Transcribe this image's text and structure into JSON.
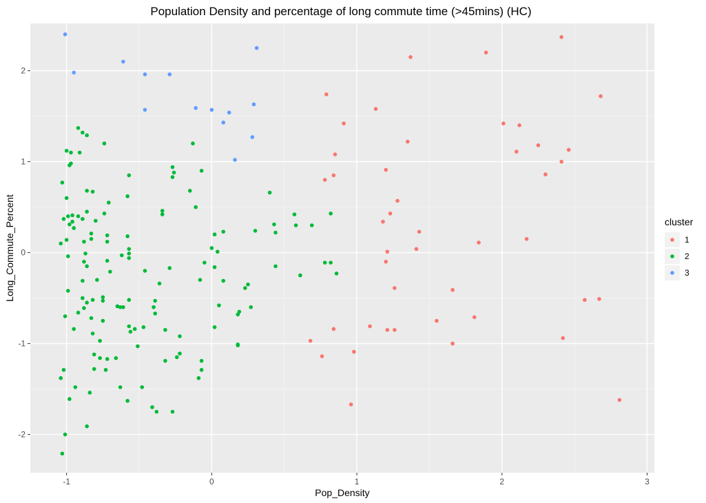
{
  "chart_data": {
    "type": "scatter",
    "title": "Population Density and percentage of long commute time (>45mins) (HC)",
    "xlabel": "Pop_Density",
    "ylabel": "Long_Commute_Percent",
    "xlim": [
      -1.25,
      3.05
    ],
    "ylim": [
      -2.42,
      2.52
    ],
    "x_ticks": [
      -1,
      0,
      1,
      2,
      3
    ],
    "y_ticks": [
      -2,
      -1,
      0,
      1,
      2
    ],
    "x_tick_labels": [
      "-1",
      "0",
      "1",
      "2",
      "3"
    ],
    "y_tick_labels": [
      "-2",
      "-1",
      "0",
      "1",
      "2"
    ],
    "grid": true,
    "legend": {
      "title": "cluster",
      "position": "right"
    },
    "series": [
      {
        "name": "1",
        "color": "#F8766D",
        "points": [
          [
            0.79,
            1.74
          ],
          [
            1.13,
            1.58
          ],
          [
            1.37,
            2.15
          ],
          [
            1.89,
            2.2
          ],
          [
            2.41,
            2.37
          ],
          [
            2.68,
            1.72
          ],
          [
            0.91,
            1.42
          ],
          [
            1.35,
            1.22
          ],
          [
            2.01,
            1.42
          ],
          [
            2.12,
            1.4
          ],
          [
            2.25,
            1.18
          ],
          [
            2.1,
            1.11
          ],
          [
            2.46,
            1.13
          ],
          [
            2.41,
            1.0
          ],
          [
            2.3,
            0.86
          ],
          [
            0.85,
            1.08
          ],
          [
            1.2,
            0.91
          ],
          [
            0.78,
            0.8
          ],
          [
            0.84,
            0.85
          ],
          [
            1.28,
            0.57
          ],
          [
            1.23,
            0.43
          ],
          [
            1.18,
            0.34
          ],
          [
            1.43,
            0.23
          ],
          [
            1.84,
            0.11
          ],
          [
            2.17,
            0.15
          ],
          [
            1.41,
            0.04
          ],
          [
            1.21,
            0.01
          ],
          [
            1.2,
            -0.1
          ],
          [
            1.26,
            -0.39
          ],
          [
            1.66,
            -0.41
          ],
          [
            2.57,
            -0.52
          ],
          [
            2.67,
            -0.51
          ],
          [
            1.55,
            -0.75
          ],
          [
            1.81,
            -0.71
          ],
          [
            1.09,
            -0.81
          ],
          [
            1.21,
            -0.85
          ],
          [
            1.26,
            -0.85
          ],
          [
            0.84,
            -0.84
          ],
          [
            2.42,
            -0.94
          ],
          [
            0.68,
            -0.97
          ],
          [
            1.66,
            -1.0
          ],
          [
            0.76,
            -1.14
          ],
          [
            0.98,
            -1.09
          ],
          [
            0.96,
            -1.67
          ],
          [
            2.81,
            -1.62
          ]
        ]
      },
      {
        "name": "2",
        "color": "#00BA38",
        "points": [
          [
            -0.92,
            1.37
          ],
          [
            -0.89,
            1.32
          ],
          [
            -0.86,
            1.29
          ],
          [
            -0.74,
            1.2
          ],
          [
            -0.13,
            1.2
          ],
          [
            -1.0,
            1.12
          ],
          [
            -0.97,
            1.1
          ],
          [
            -0.91,
            1.1
          ],
          [
            -0.97,
            0.98
          ],
          [
            -0.98,
            0.96
          ],
          [
            -0.27,
            0.94
          ],
          [
            -0.26,
            0.88
          ],
          [
            -0.07,
            0.9
          ],
          [
            -0.27,
            0.83
          ],
          [
            -0.57,
            0.85
          ],
          [
            -1.03,
            0.77
          ],
          [
            -0.86,
            0.68
          ],
          [
            -0.82,
            0.67
          ],
          [
            -0.15,
            0.68
          ],
          [
            0.4,
            0.66
          ],
          [
            -1.0,
            0.6
          ],
          [
            -0.58,
            0.62
          ],
          [
            -0.71,
            0.55
          ],
          [
            -0.11,
            0.5
          ],
          [
            -0.86,
            0.45
          ],
          [
            -0.34,
            0.46
          ],
          [
            -0.34,
            0.42
          ],
          [
            -0.74,
            0.43
          ],
          [
            -0.96,
            0.41
          ],
          [
            -0.99,
            0.4
          ],
          [
            -0.92,
            0.4
          ],
          [
            -0.89,
            0.37
          ],
          [
            -1.02,
            0.37
          ],
          [
            -0.96,
            0.34
          ],
          [
            -0.8,
            0.35
          ],
          [
            -0.98,
            0.31
          ],
          [
            -0.95,
            0.27
          ],
          [
            -0.83,
            0.21
          ],
          [
            0.57,
            0.42
          ],
          [
            0.82,
            0.43
          ],
          [
            0.43,
            0.31
          ],
          [
            0.58,
            0.3
          ],
          [
            0.69,
            0.3
          ],
          [
            -0.72,
            0.19
          ],
          [
            -0.58,
            0.18
          ],
          [
            -0.83,
            0.15
          ],
          [
            -0.72,
            0.12
          ],
          [
            -0.88,
            0.12
          ],
          [
            -1.0,
            0.14
          ],
          [
            -1.04,
            0.1
          ],
          [
            0.3,
            0.24
          ],
          [
            0.44,
            0.22
          ],
          [
            0.02,
            0.2
          ],
          [
            0.08,
            0.23
          ],
          [
            -0.57,
            0.04
          ],
          [
            -0.57,
            -0.01
          ],
          [
            -0.62,
            -0.03
          ],
          [
            -0.87,
            -0.01
          ],
          [
            -0.99,
            -0.04
          ],
          [
            -0.57,
            -0.06
          ],
          [
            -0.72,
            -0.09
          ],
          [
            -0.88,
            -0.1
          ],
          [
            -0.86,
            -0.15
          ],
          [
            0.0,
            0.05
          ],
          [
            0.04,
            0.01
          ],
          [
            -0.05,
            -0.11
          ],
          [
            -0.29,
            -0.17
          ],
          [
            -0.46,
            -0.2
          ],
          [
            -0.7,
            -0.21
          ],
          [
            -0.79,
            -0.3
          ],
          [
            -0.89,
            -0.31
          ],
          [
            -0.36,
            -0.34
          ],
          [
            -0.99,
            -0.42
          ],
          [
            0.02,
            -0.16
          ],
          [
            0.08,
            -0.31
          ],
          [
            -0.08,
            -0.3
          ],
          [
            0.44,
            -0.15
          ],
          [
            0.61,
            -0.25
          ],
          [
            0.78,
            -0.11
          ],
          [
            0.82,
            -0.11
          ],
          [
            0.86,
            -0.23
          ],
          [
            0.25,
            -0.35
          ],
          [
            0.23,
            -0.39
          ],
          [
            -0.89,
            -0.5
          ],
          [
            -0.86,
            -0.55
          ],
          [
            -0.82,
            -0.52
          ],
          [
            -0.75,
            -0.49
          ],
          [
            -0.75,
            -0.53
          ],
          [
            -0.57,
            -0.52
          ],
          [
            -0.39,
            -0.53
          ],
          [
            -0.65,
            -0.59
          ],
          [
            -0.63,
            -0.6
          ],
          [
            -0.61,
            -0.6
          ],
          [
            -0.92,
            -0.66
          ],
          [
            -0.88,
            -0.61
          ],
          [
            -0.83,
            -0.72
          ],
          [
            -0.75,
            -0.75
          ],
          [
            -0.4,
            -0.6
          ],
          [
            -0.39,
            -0.67
          ],
          [
            0.05,
            -0.58
          ],
          [
            0.19,
            -0.65
          ],
          [
            0.18,
            -0.68
          ],
          [
            0.27,
            -0.6
          ],
          [
            -0.95,
            -0.84
          ],
          [
            -1.01,
            -0.7
          ],
          [
            -0.57,
            -0.81
          ],
          [
            -0.53,
            -0.84
          ],
          [
            -0.47,
            -0.82
          ],
          [
            -0.32,
            -0.85
          ],
          [
            -0.22,
            -0.92
          ],
          [
            0.02,
            -0.82
          ],
          [
            0.18,
            -1.01
          ],
          [
            0.18,
            -1.02
          ],
          [
            -0.82,
            -0.89
          ],
          [
            -0.77,
            -0.97
          ],
          [
            -0.56,
            -0.87
          ],
          [
            -0.51,
            -1.03
          ],
          [
            -0.32,
            -1.19
          ],
          [
            -0.22,
            -1.11
          ],
          [
            -0.24,
            -1.15
          ],
          [
            -0.07,
            -1.19
          ],
          [
            -0.81,
            -1.12
          ],
          [
            -0.77,
            -1.16
          ],
          [
            -0.72,
            -1.17
          ],
          [
            -0.66,
            -1.16
          ],
          [
            -0.81,
            -1.28
          ],
          [
            -0.73,
            -1.29
          ],
          [
            -0.07,
            -1.29
          ],
          [
            -0.09,
            -1.38
          ],
          [
            -0.94,
            -1.48
          ],
          [
            -0.63,
            -1.48
          ],
          [
            -0.48,
            -1.48
          ],
          [
            -0.58,
            -1.63
          ],
          [
            -0.84,
            -1.54
          ],
          [
            -0.98,
            -1.61
          ],
          [
            -1.02,
            -1.29
          ],
          [
            -1.04,
            -1.38
          ],
          [
            -0.41,
            -1.7
          ],
          [
            -0.38,
            -1.75
          ],
          [
            -0.27,
            -1.75
          ],
          [
            -0.86,
            -1.91
          ],
          [
            -1.01,
            -2.0
          ],
          [
            -1.03,
            -2.21
          ]
        ]
      },
      {
        "name": "3",
        "color": "#619CFF",
        "points": [
          [
            -1.01,
            2.4
          ],
          [
            -0.61,
            2.1
          ],
          [
            0.31,
            2.25
          ],
          [
            -0.95,
            1.98
          ],
          [
            -0.46,
            1.96
          ],
          [
            -0.29,
            1.96
          ],
          [
            -0.11,
            1.59
          ],
          [
            -0.46,
            1.57
          ],
          [
            0.0,
            1.57
          ],
          [
            0.12,
            1.54
          ],
          [
            0.29,
            1.63
          ],
          [
            0.08,
            1.43
          ],
          [
            0.28,
            1.27
          ],
          [
            0.16,
            1.02
          ]
        ]
      }
    ]
  }
}
